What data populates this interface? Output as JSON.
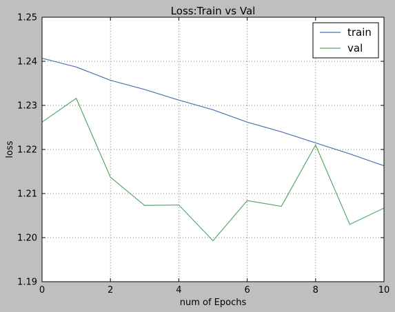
{
  "chart_data": {
    "type": "line",
    "title": "Loss:Train vs Val",
    "xlabel": "num of Epochs",
    "ylabel": "loss",
    "xlim": [
      0,
      10
    ],
    "ylim": [
      1.19,
      1.25
    ],
    "xticks": [
      0,
      2,
      4,
      6,
      8,
      10
    ],
    "xtick_labels": [
      "0",
      "2",
      "4",
      "6",
      "8",
      "10"
    ],
    "yticks": [
      1.19,
      1.2,
      1.21,
      1.22,
      1.23,
      1.24,
      1.25
    ],
    "ytick_labels": [
      "1.19",
      "1.20",
      "1.21",
      "1.22",
      "1.23",
      "1.24",
      "1.25"
    ],
    "grid": true,
    "legend_position": "top-right",
    "x": [
      0,
      1,
      2,
      3,
      4,
      5,
      6,
      7,
      8,
      9,
      10
    ],
    "series": [
      {
        "name": "train",
        "color": "#4c72b0",
        "values": [
          1.2407,
          1.2387,
          1.2357,
          1.2336,
          1.2312,
          1.229,
          1.2262,
          1.224,
          1.2215,
          1.219,
          1.2163
        ]
      },
      {
        "name": "val",
        "color": "#55a868",
        "values": [
          1.2262,
          1.2316,
          1.2137,
          1.2073,
          1.2074,
          1.1993,
          1.2084,
          1.2071,
          1.221,
          1.203,
          1.2067
        ]
      }
    ]
  }
}
